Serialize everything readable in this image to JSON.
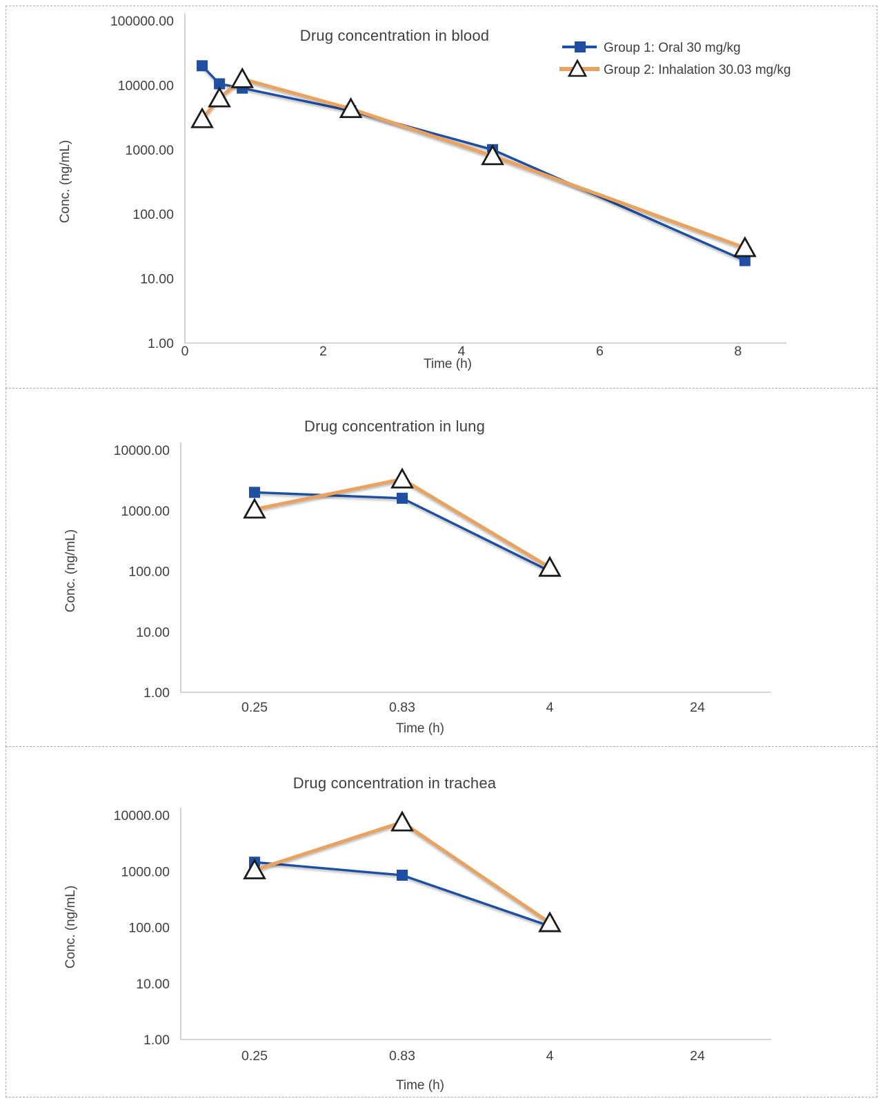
{
  "colors": {
    "group1_blue": "#1f4fa3",
    "group2_orange": "#e9a25f",
    "triangle_fill": "#ffffff",
    "triangle_stroke": "#1a1a1a",
    "axis_line": "#c6c6c6",
    "text": "#3f3f3f",
    "panel_border": "#ababab"
  },
  "legend": {
    "position": "top-right",
    "items": [
      {
        "label": "Group 1: Oral 30 mg/kg",
        "marker": "square"
      },
      {
        "label": "Group 2: Inhalation 30.03 mg/kg",
        "marker": "triangle"
      }
    ]
  },
  "chart_data": [
    {
      "type": "line",
      "title": "Drug concentration in blood",
      "xlabel": "Time (h)",
      "ylabel": "Conc. (ng/mL)",
      "y_scale": "log",
      "y_range": [
        1,
        100000
      ],
      "y_tick_labels": [
        "100000.00",
        "10000.00",
        "1000.00",
        "100.00",
        "10.00",
        "1.00"
      ],
      "x_axis": {
        "type": "linear",
        "range": [
          0,
          8.7
        ],
        "ticks": [
          0,
          2,
          4,
          6,
          8
        ]
      },
      "grid": false,
      "legend": true,
      "series": [
        {
          "name": "Group 1: Oral 30 mg/kg",
          "marker": "square",
          "x": [
            0.25,
            0.5,
            0.83,
            2.4,
            4.45,
            8.1
          ],
          "y": [
            20000,
            10500,
            9000,
            4000,
            1000,
            19
          ]
        },
        {
          "name": "Group 2: Inhalation 30.03 mg/kg",
          "marker": "triangle",
          "x": [
            0.25,
            0.5,
            0.83,
            2.4,
            4.45,
            8.1
          ],
          "y": [
            3000,
            6300,
            12500,
            4300,
            800,
            30
          ]
        }
      ]
    },
    {
      "type": "line",
      "title": "Drug concentration in lung",
      "xlabel": "Time (h)",
      "ylabel": "Conc. (ng/mL)",
      "y_scale": "log",
      "y_range": [
        1,
        10000
      ],
      "y_tick_labels": [
        "10000.00",
        "1000.00",
        "100.00",
        "10.00",
        "1.00"
      ],
      "x_axis": {
        "type": "category",
        "categories": [
          0.25,
          0.83,
          4,
          24
        ]
      },
      "grid": false,
      "legend": false,
      "series": [
        {
          "name": "Group 1: Oral 30 mg/kg",
          "marker": "square",
          "x": [
            0.25,
            0.83,
            4
          ],
          "y": [
            2000,
            1600,
            100
          ]
        },
        {
          "name": "Group 2: Inhalation 30.03 mg/kg",
          "marker": "triangle",
          "x": [
            0.25,
            0.83,
            4
          ],
          "y": [
            1050,
            3300,
            115
          ]
        }
      ]
    },
    {
      "type": "line",
      "title": "Drug concentration in trachea",
      "xlabel": "Time (h)",
      "ylabel": "Conc. (ng/mL)",
      "y_scale": "log",
      "y_range": [
        1,
        10000
      ],
      "y_tick_labels": [
        "10000.00",
        "1000.00",
        "100.00",
        "10.00",
        "1.00"
      ],
      "x_axis": {
        "type": "category",
        "categories": [
          0.25,
          0.83,
          4,
          24
        ]
      },
      "grid": false,
      "legend": false,
      "series": [
        {
          "name": "Group 1: Oral 30 mg/kg",
          "marker": "square",
          "x": [
            0.25,
            0.83,
            4
          ],
          "y": [
            1450,
            850,
            105
          ]
        },
        {
          "name": "Group 2: Inhalation 30.03 mg/kg",
          "marker": "triangle",
          "x": [
            0.25,
            0.83,
            4
          ],
          "y": [
            1050,
            7500,
            120
          ]
        }
      ]
    }
  ]
}
